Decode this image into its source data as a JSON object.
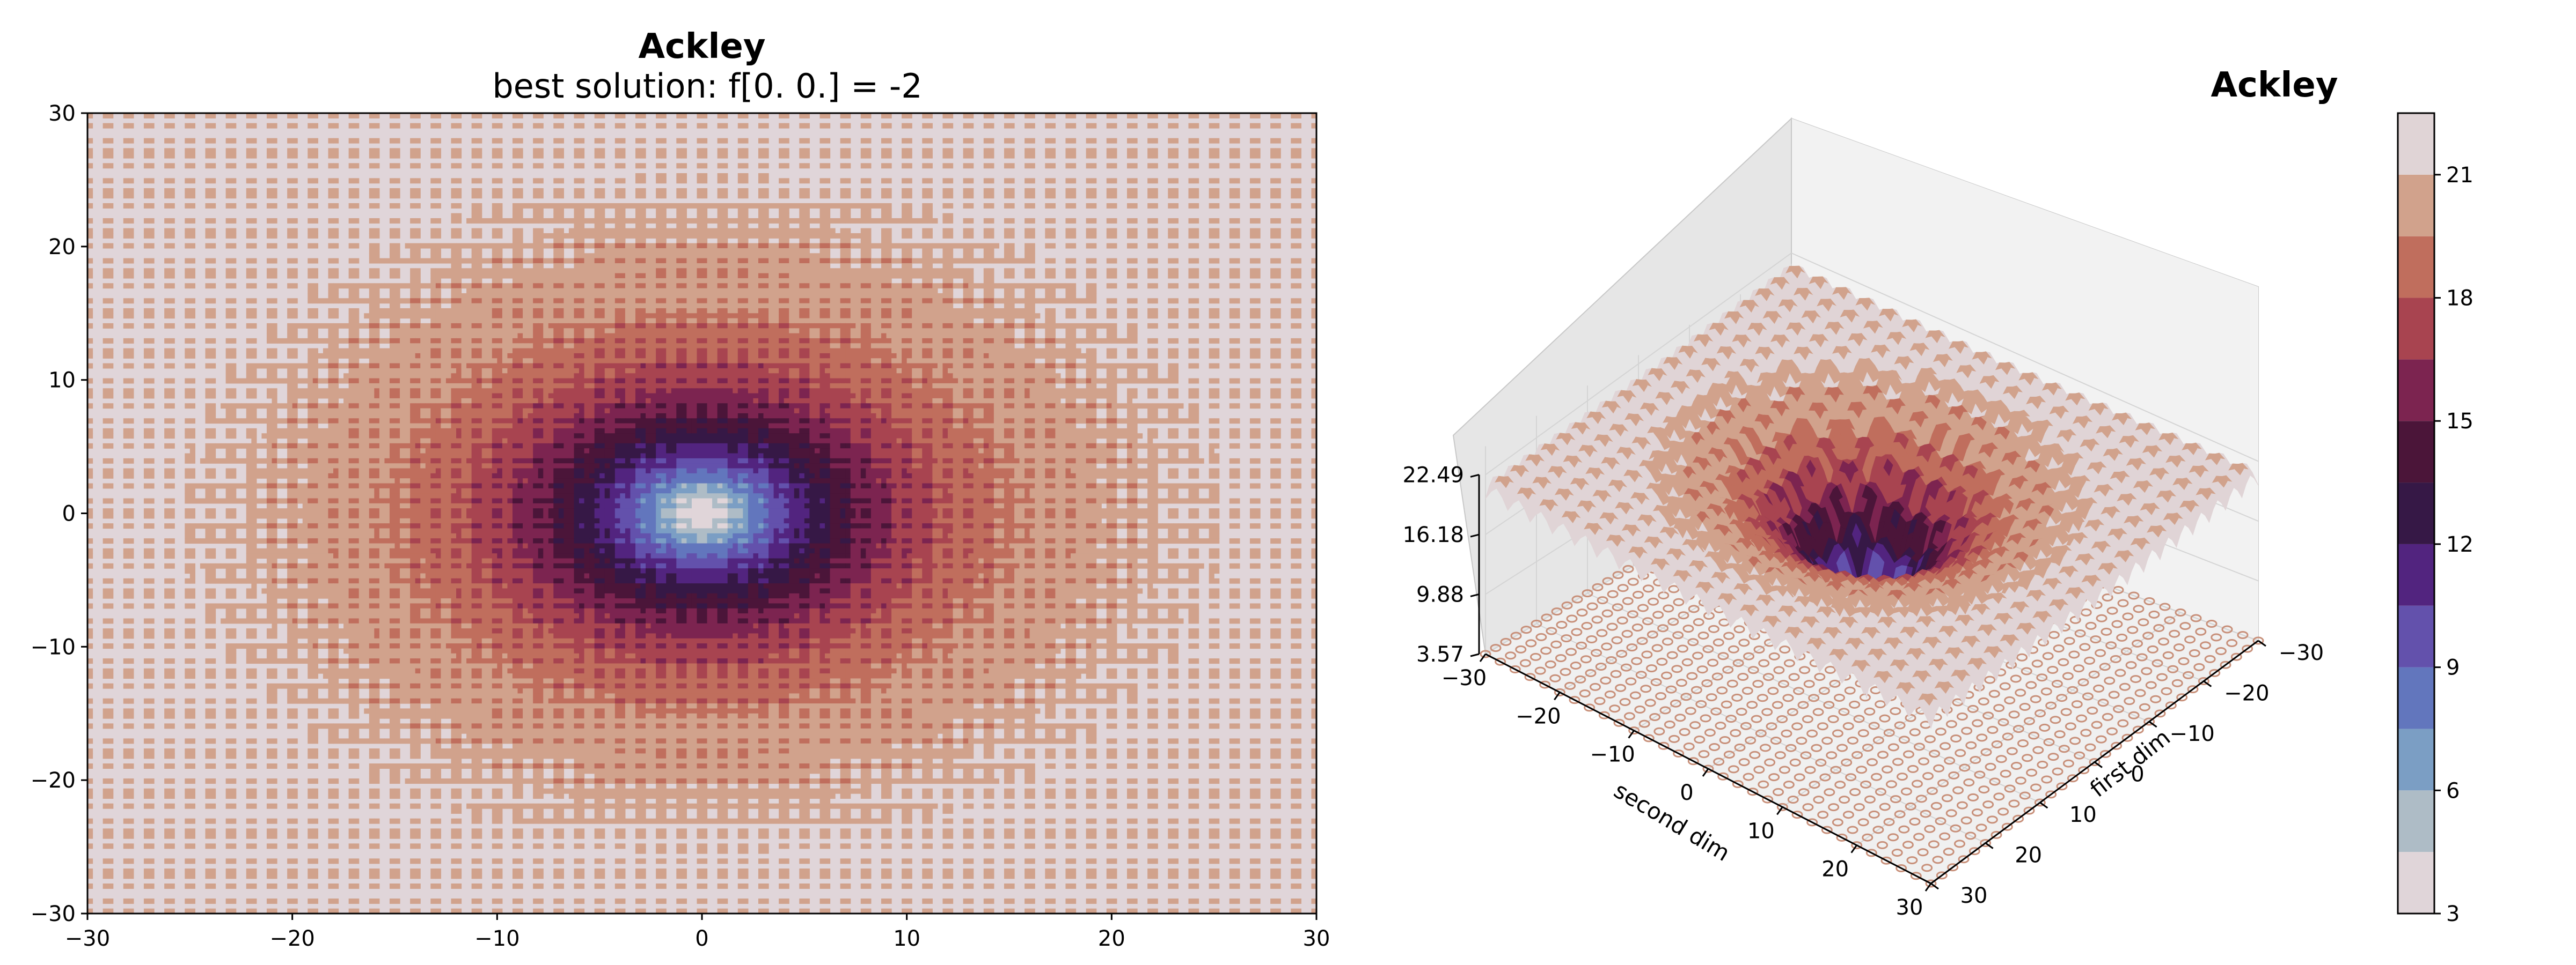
{
  "figure": {
    "left_panel": {
      "title": "Ackley",
      "subtitle": "best solution: f[0. 0.] = -2"
    },
    "right_panel": {
      "title": "Ackley"
    }
  },
  "chart_data": [
    {
      "type": "heatmap",
      "title": "Ackley",
      "subtitle": "best solution: f[0. 0.] = -2",
      "xlabel": "",
      "ylabel": "",
      "xlim": [
        -30,
        30
      ],
      "ylim": [
        -30,
        30
      ],
      "xticks": [
        -30,
        -20,
        -10,
        0,
        10,
        20,
        30
      ],
      "yticks": [
        -30,
        -20,
        -10,
        0,
        10,
        20,
        30
      ],
      "function": "ackley",
      "minimum": [
        0,
        0
      ],
      "grid": false
    },
    {
      "type": "surface",
      "title": "Ackley",
      "xlabel": "first dim",
      "ylabel": "second dim",
      "xticks": [
        -30,
        -20,
        -10,
        0,
        10,
        20,
        30
      ],
      "yticks": [
        -30,
        -20,
        -10,
        0,
        10,
        20,
        30
      ],
      "zticks": [
        3.57,
        9.88,
        16.18,
        22.49
      ],
      "zlim": [
        3.57,
        22.49
      ],
      "grid": true
    },
    {
      "type": "colorbar",
      "ticks": [
        3,
        6,
        9,
        12,
        15,
        18,
        21
      ],
      "levels": [
        3,
        4.5,
        6,
        7.5,
        9,
        10.5,
        12,
        13.5,
        15,
        16.5,
        18,
        19.5,
        21,
        22.5
      ],
      "colors": [
        "#e0d5d9",
        "#aebcc6",
        "#7b9ec4",
        "#6276bd",
        "#6351ac",
        "#52247f",
        "#361846",
        "#4b1539",
        "#7c2450",
        "#a84450",
        "#c06e5d",
        "#d1a28c",
        "#e0d4d6"
      ]
    }
  ]
}
